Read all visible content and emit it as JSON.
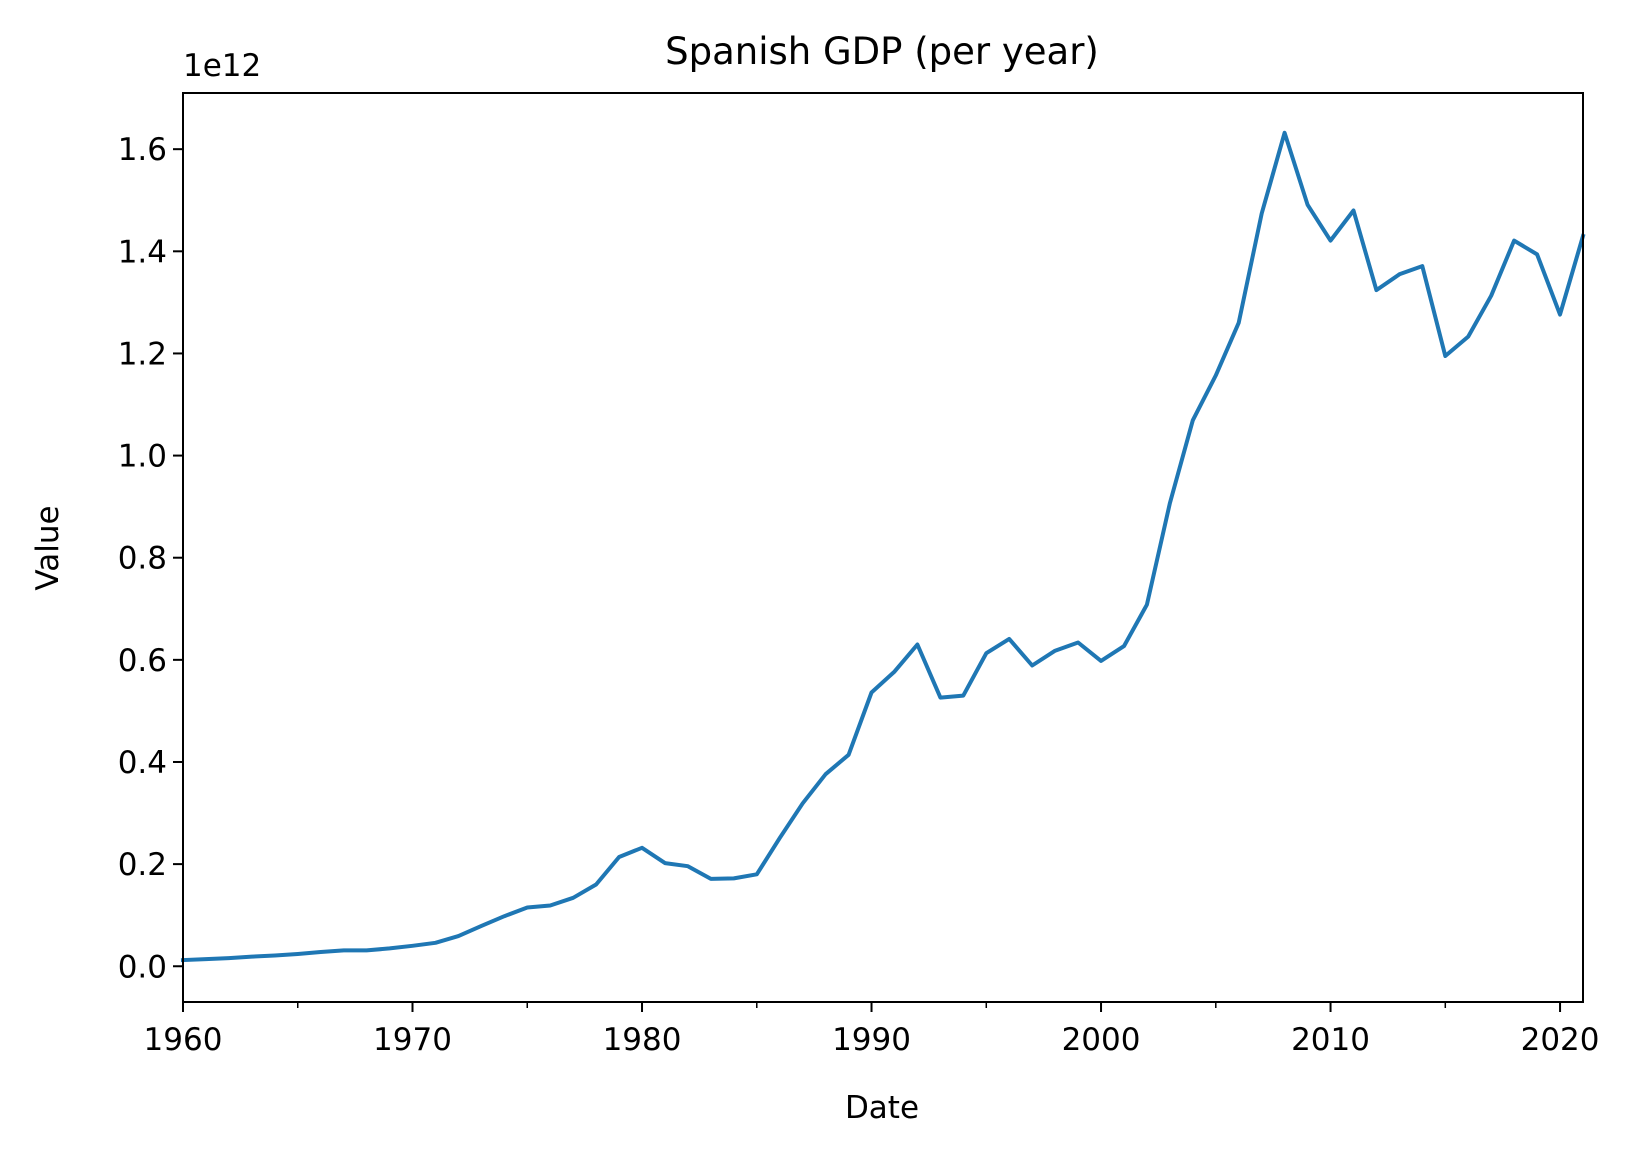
{
  "chart_data": {
    "type": "line",
    "title": "Spanish GDP (per year)",
    "xlabel": "Date",
    "ylabel": "Value",
    "offset_text": "1e12",
    "xlim": [
      1960,
      2021
    ],
    "ylim": [
      -0.07,
      1.71
    ],
    "x_ticks": [
      1960,
      1970,
      1980,
      1990,
      2000,
      2010,
      2020
    ],
    "x_minor_ticks": [
      1965,
      1975,
      1985,
      1995,
      2005,
      2015
    ],
    "y_ticks": [
      0.0,
      0.2,
      0.4,
      0.6,
      0.8,
      1.0,
      1.2,
      1.4,
      1.6
    ],
    "y_tick_labels": [
      "0.0",
      "0.2",
      "0.4",
      "0.6",
      "0.8",
      "1.0",
      "1.2",
      "1.4",
      "1.6"
    ],
    "grid": false,
    "line_color": "#1f77b4",
    "x": [
      1960,
      1961,
      1962,
      1963,
      1964,
      1965,
      1966,
      1967,
      1968,
      1969,
      1970,
      1971,
      1972,
      1973,
      1974,
      1975,
      1976,
      1977,
      1978,
      1979,
      1980,
      1981,
      1982,
      1983,
      1984,
      1985,
      1986,
      1987,
      1988,
      1989,
      1990,
      1991,
      1992,
      1993,
      1994,
      1995,
      1996,
      1997,
      1998,
      1999,
      2000,
      2001,
      2002,
      2003,
      2004,
      2005,
      2006,
      2007,
      2008,
      2009,
      2010,
      2011,
      2012,
      2013,
      2014,
      2015,
      2016,
      2017,
      2018,
      2019,
      2020,
      2021
    ],
    "y": [
      0.012,
      0.014,
      0.016,
      0.019,
      0.021,
      0.024,
      0.028,
      0.031,
      0.031,
      0.035,
      0.04,
      0.046,
      0.059,
      0.079,
      0.098,
      0.115,
      0.119,
      0.134,
      0.16,
      0.214,
      0.232,
      0.202,
      0.196,
      0.171,
      0.172,
      0.18,
      0.251,
      0.319,
      0.376,
      0.414,
      0.536,
      0.577,
      0.63,
      0.526,
      0.53,
      0.613,
      0.641,
      0.589,
      0.618,
      0.634,
      0.598,
      0.627,
      0.708,
      0.907,
      1.069,
      1.157,
      1.26,
      1.474,
      1.632,
      1.491,
      1.421,
      1.48,
      1.324,
      1.355,
      1.371,
      1.195,
      1.233,
      1.313,
      1.421,
      1.394,
      1.276,
      1.43
    ]
  }
}
